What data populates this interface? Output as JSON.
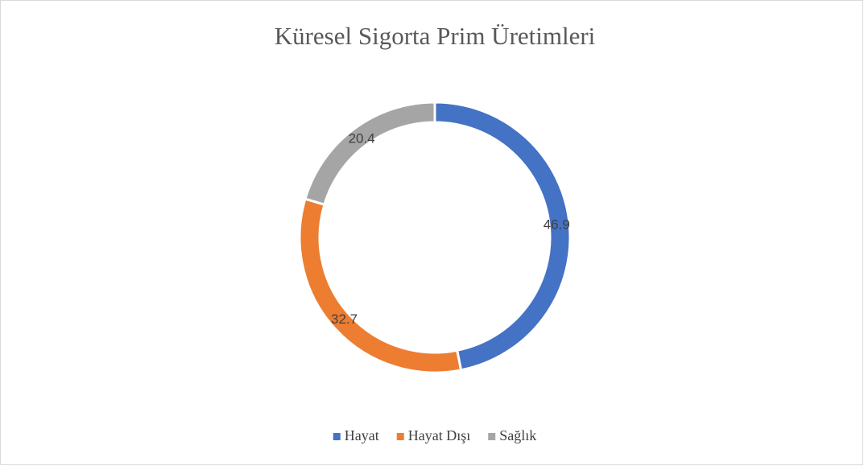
{
  "chart_data": {
    "type": "donut",
    "title": "Küresel Sigorta Prim Üretimleri",
    "categories": [
      "Hayat",
      "Hayat Dışı",
      "Sağlık"
    ],
    "values": [
      46.9,
      32.7,
      20.4
    ],
    "colors": [
      "#4472c4",
      "#ed7d31",
      "#a5a5a5"
    ],
    "legend": "bottom"
  }
}
